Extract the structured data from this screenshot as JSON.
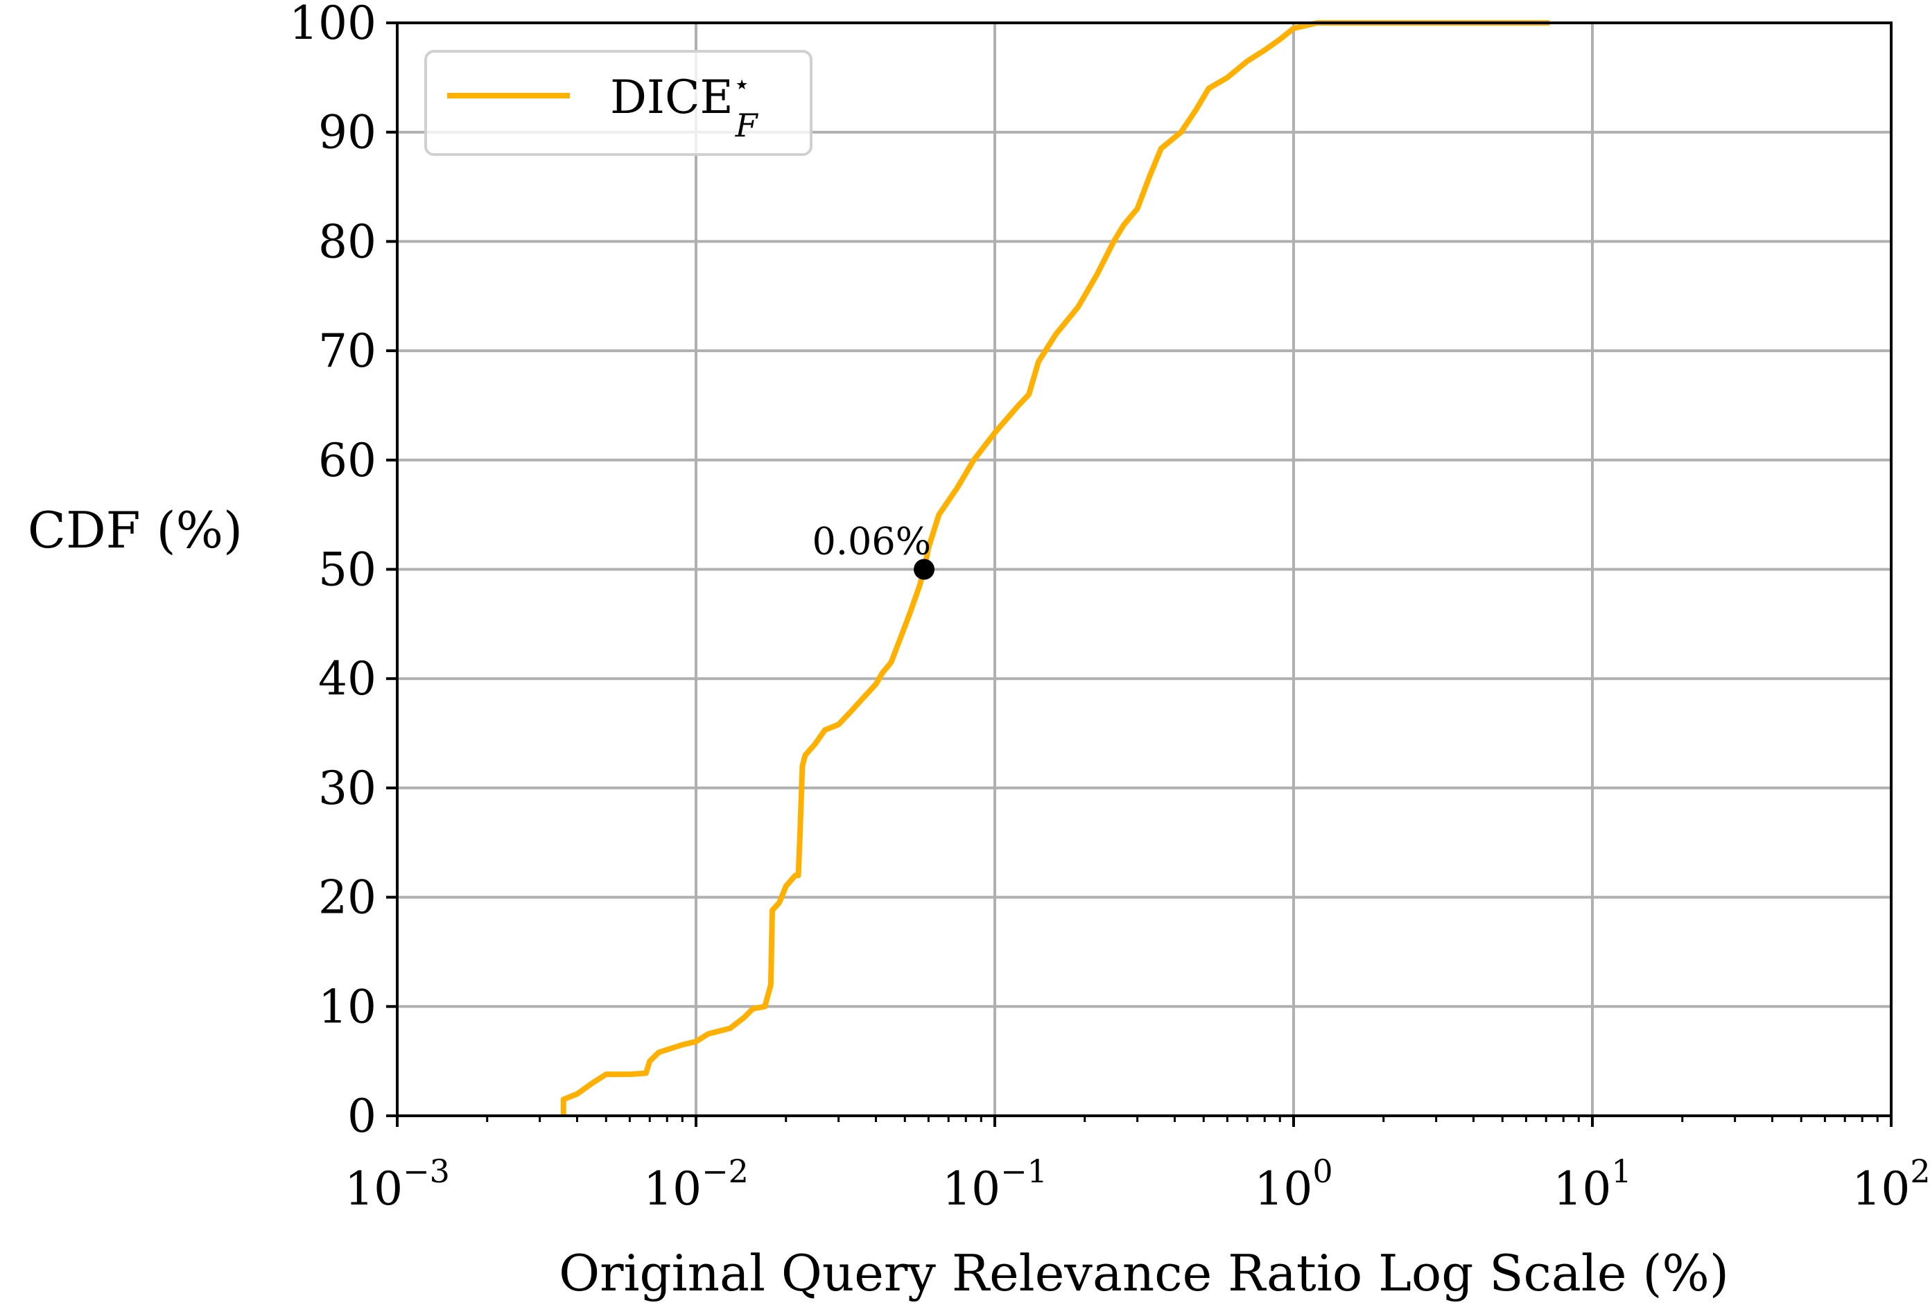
{
  "chart_data": {
    "type": "line",
    "xlabel": "Original Query Relevance Ratio Log Scale (%)",
    "ylabel": "CDF (%)",
    "xscale": "log",
    "xlim": [
      0.001,
      100
    ],
    "ylim": [
      0,
      100
    ],
    "grid": true,
    "legend_position": "top-left",
    "x_ticks": [
      {
        "base": "10",
        "exp": "−3",
        "value": 0.001
      },
      {
        "base": "10",
        "exp": "−2",
        "value": 0.01
      },
      {
        "base": "10",
        "exp": "−1",
        "value": 0.1
      },
      {
        "base": "10",
        "exp": "0",
        "value": 1
      },
      {
        "base": "10",
        "exp": "1",
        "value": 10
      },
      {
        "base": "10",
        "exp": "2",
        "value": 100
      }
    ],
    "y_ticks": [
      {
        "label": "0",
        "value": 0
      },
      {
        "label": "10",
        "value": 10
      },
      {
        "label": "20",
        "value": 20
      },
      {
        "label": "30",
        "value": 30
      },
      {
        "label": "40",
        "value": 40
      },
      {
        "label": "50",
        "value": 50
      },
      {
        "label": "60",
        "value": 60
      },
      {
        "label": "70",
        "value": 70
      },
      {
        "label": "80",
        "value": 80
      },
      {
        "label": "90",
        "value": 90
      },
      {
        "label": "100",
        "value": 100
      }
    ],
    "series": [
      {
        "legend_base": "DICE",
        "legend_sub": "F",
        "legend_sup": "⋆",
        "color": "#ffb000",
        "points": [
          [
            0.0036,
            0
          ],
          [
            0.0036,
            1.5
          ],
          [
            0.004,
            2.0
          ],
          [
            0.0045,
            3.0
          ],
          [
            0.005,
            3.8
          ],
          [
            0.006,
            3.8
          ],
          [
            0.0068,
            3.9
          ],
          [
            0.007,
            5.0
          ],
          [
            0.0075,
            5.8
          ],
          [
            0.009,
            6.5
          ],
          [
            0.01,
            6.8
          ],
          [
            0.011,
            7.5
          ],
          [
            0.013,
            8.0
          ],
          [
            0.0145,
            9.0
          ],
          [
            0.0155,
            9.8
          ],
          [
            0.017,
            10.0
          ],
          [
            0.0178,
            12.0
          ],
          [
            0.018,
            18.8
          ],
          [
            0.019,
            19.5
          ],
          [
            0.02,
            21.0
          ],
          [
            0.0215,
            22.0
          ],
          [
            0.022,
            22.0
          ],
          [
            0.0223,
            26.0
          ],
          [
            0.0227,
            32.0
          ],
          [
            0.0232,
            33.0
          ],
          [
            0.025,
            34.0
          ],
          [
            0.027,
            35.3
          ],
          [
            0.03,
            35.8
          ],
          [
            0.033,
            37.0
          ],
          [
            0.037,
            38.5
          ],
          [
            0.04,
            39.5
          ],
          [
            0.042,
            40.5
          ],
          [
            0.045,
            41.5
          ],
          [
            0.048,
            43.5
          ],
          [
            0.052,
            46.0
          ],
          [
            0.056,
            48.5
          ],
          [
            0.058,
            50.0
          ],
          [
            0.06,
            52.0
          ],
          [
            0.065,
            55.0
          ],
          [
            0.075,
            57.5
          ],
          [
            0.085,
            60.0
          ],
          [
            0.1,
            62.5
          ],
          [
            0.12,
            65.0
          ],
          [
            0.13,
            66.0
          ],
          [
            0.14,
            69.0
          ],
          [
            0.16,
            71.5
          ],
          [
            0.19,
            74.0
          ],
          [
            0.22,
            77.0
          ],
          [
            0.25,
            80.0
          ],
          [
            0.27,
            81.5
          ],
          [
            0.3,
            83.0
          ],
          [
            0.33,
            86.0
          ],
          [
            0.36,
            88.5
          ],
          [
            0.42,
            90.0
          ],
          [
            0.47,
            92.0
          ],
          [
            0.52,
            94.0
          ],
          [
            0.6,
            95.0
          ],
          [
            0.7,
            96.5
          ],
          [
            0.8,
            97.5
          ],
          [
            0.9,
            98.5
          ],
          [
            1.0,
            99.5
          ],
          [
            1.2,
            100.0
          ],
          [
            7.2,
            100.0
          ]
        ]
      }
    ],
    "annotation": {
      "text": "0.06%",
      "x": 0.058,
      "y": 50
    }
  }
}
